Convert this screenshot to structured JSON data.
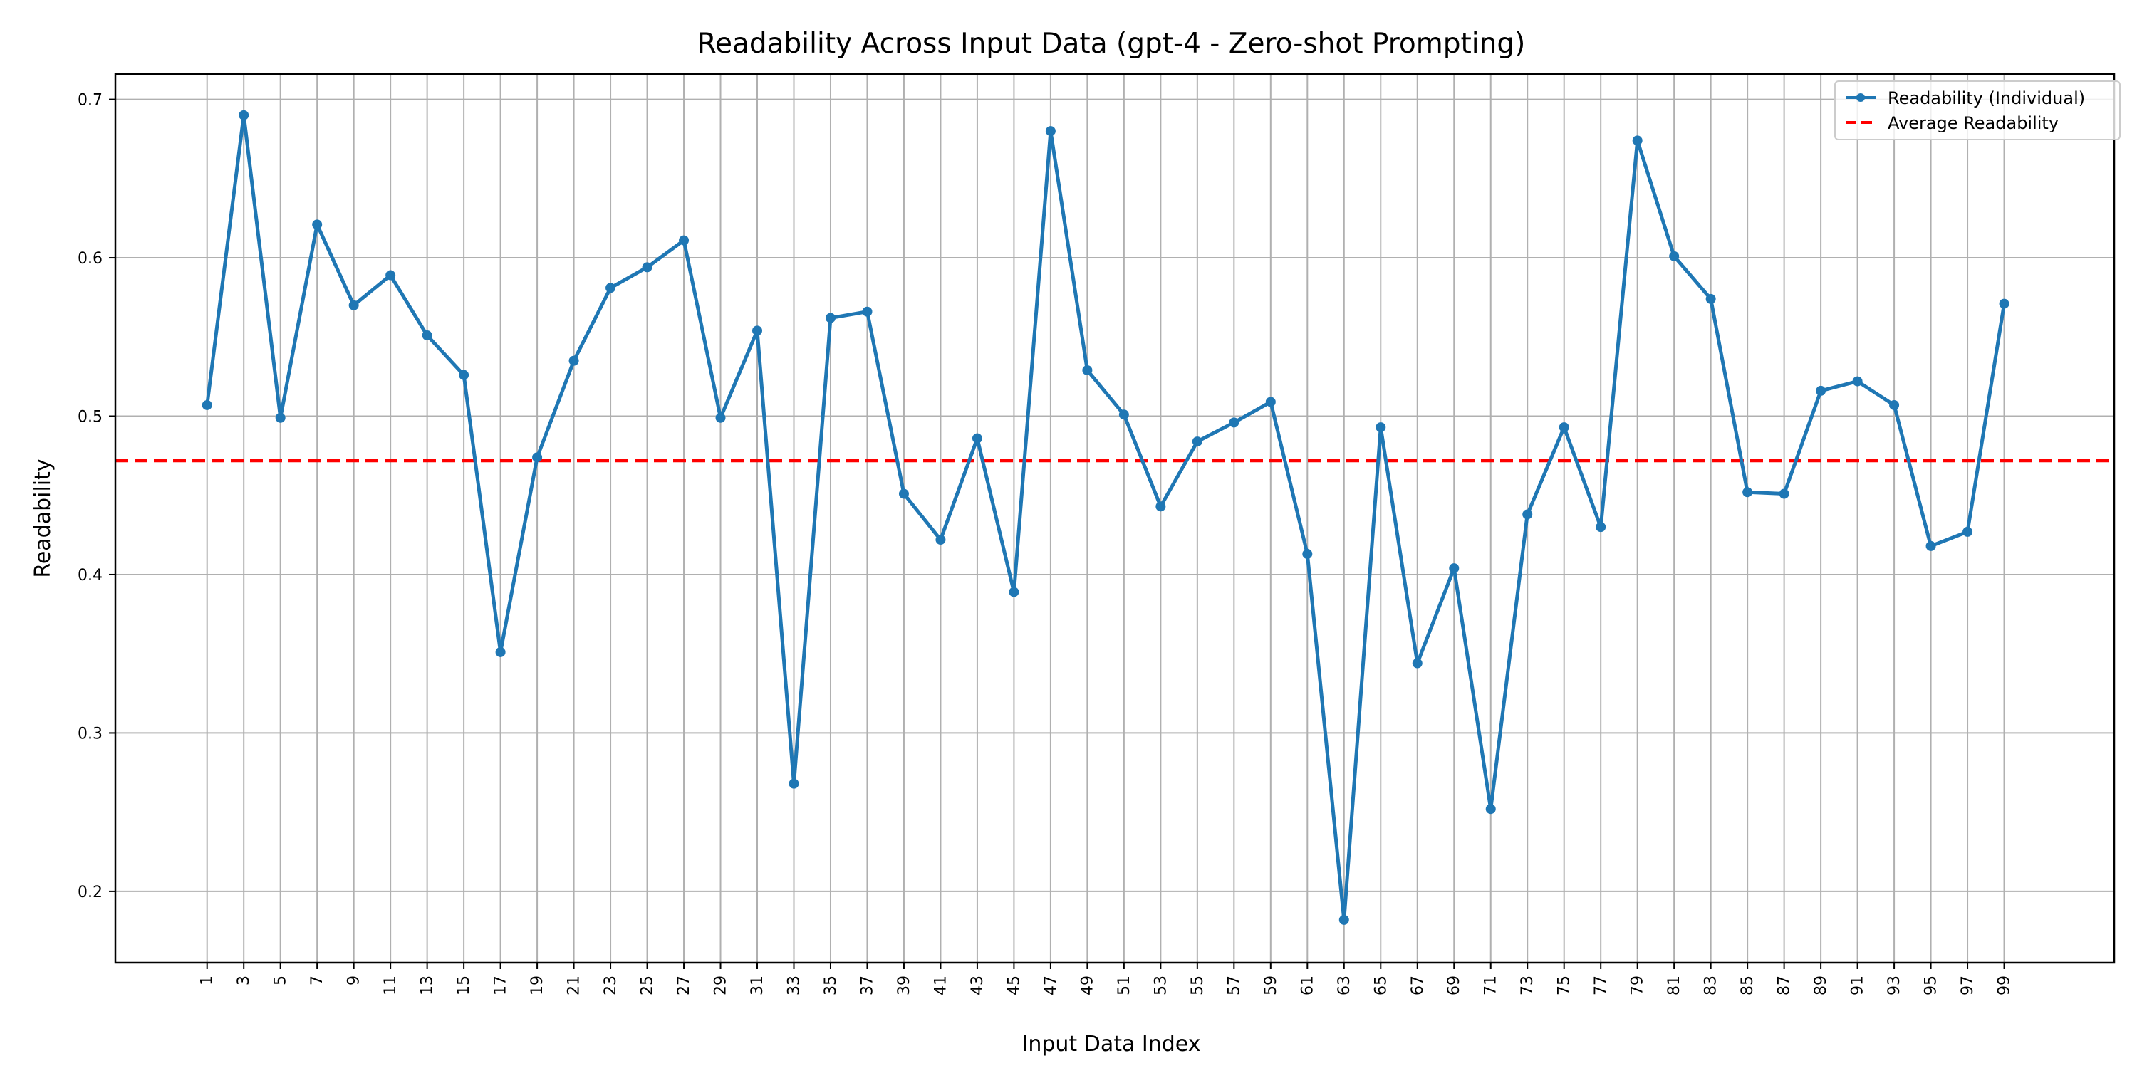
{
  "chart_data": {
    "type": "line",
    "title": "Readability Across Input Data (gpt-4 - Zero-shot Prompting)",
    "xlabel": "Input Data Index",
    "ylabel": "Readability",
    "x": [
      1,
      3,
      5,
      7,
      9,
      11,
      13,
      15,
      17,
      19,
      21,
      23,
      25,
      27,
      29,
      31,
      33,
      35,
      37,
      39,
      41,
      43,
      45,
      47,
      49,
      51,
      53,
      55,
      57,
      59,
      61,
      63,
      65,
      67,
      69,
      71,
      73,
      75,
      77,
      79,
      81,
      83,
      85,
      87,
      89,
      91,
      93,
      95,
      97,
      99
    ],
    "xticks": [
      "1",
      "3",
      "5",
      "7",
      "9",
      "11",
      "13",
      "15",
      "17",
      "19",
      "21",
      "23",
      "25",
      "27",
      "29",
      "31",
      "33",
      "35",
      "37",
      "39",
      "41",
      "43",
      "45",
      "47",
      "49",
      "51",
      "53",
      "55",
      "57",
      "59",
      "61",
      "63",
      "65",
      "67",
      "69",
      "71",
      "73",
      "75",
      "77",
      "79",
      "81",
      "83",
      "85",
      "87",
      "89",
      "91",
      "93",
      "95",
      "97",
      "99"
    ],
    "yticks": [
      "0.2",
      "0.3",
      "0.4",
      "0.5",
      "0.6",
      "0.7"
    ],
    "xlim": [
      -4,
      105
    ],
    "ylim": [
      0.155,
      0.716
    ],
    "grid": true,
    "legend_position": "top-right",
    "series": [
      {
        "name": "Readability (Individual)",
        "color": "#1f77b4",
        "style": "solid-with-markers",
        "values": [
          0.507,
          0.69,
          0.499,
          0.621,
          0.57,
          0.589,
          0.551,
          0.526,
          0.351,
          0.474,
          0.535,
          0.581,
          0.594,
          0.611,
          0.499,
          0.554,
          0.268,
          0.562,
          0.566,
          0.451,
          0.422,
          0.486,
          0.389,
          0.68,
          0.529,
          0.501,
          0.443,
          0.484,
          0.496,
          0.509,
          0.413,
          0.182,
          0.493,
          0.344,
          0.404,
          0.252,
          0.438,
          0.493,
          0.43,
          0.674,
          0.601,
          0.574,
          0.452,
          0.451,
          0.516,
          0.522,
          0.507,
          0.418,
          0.427,
          0.571
        ]
      },
      {
        "name": "Average Readability",
        "color": "#ff0000",
        "style": "dashed",
        "value": 0.472
      }
    ]
  }
}
